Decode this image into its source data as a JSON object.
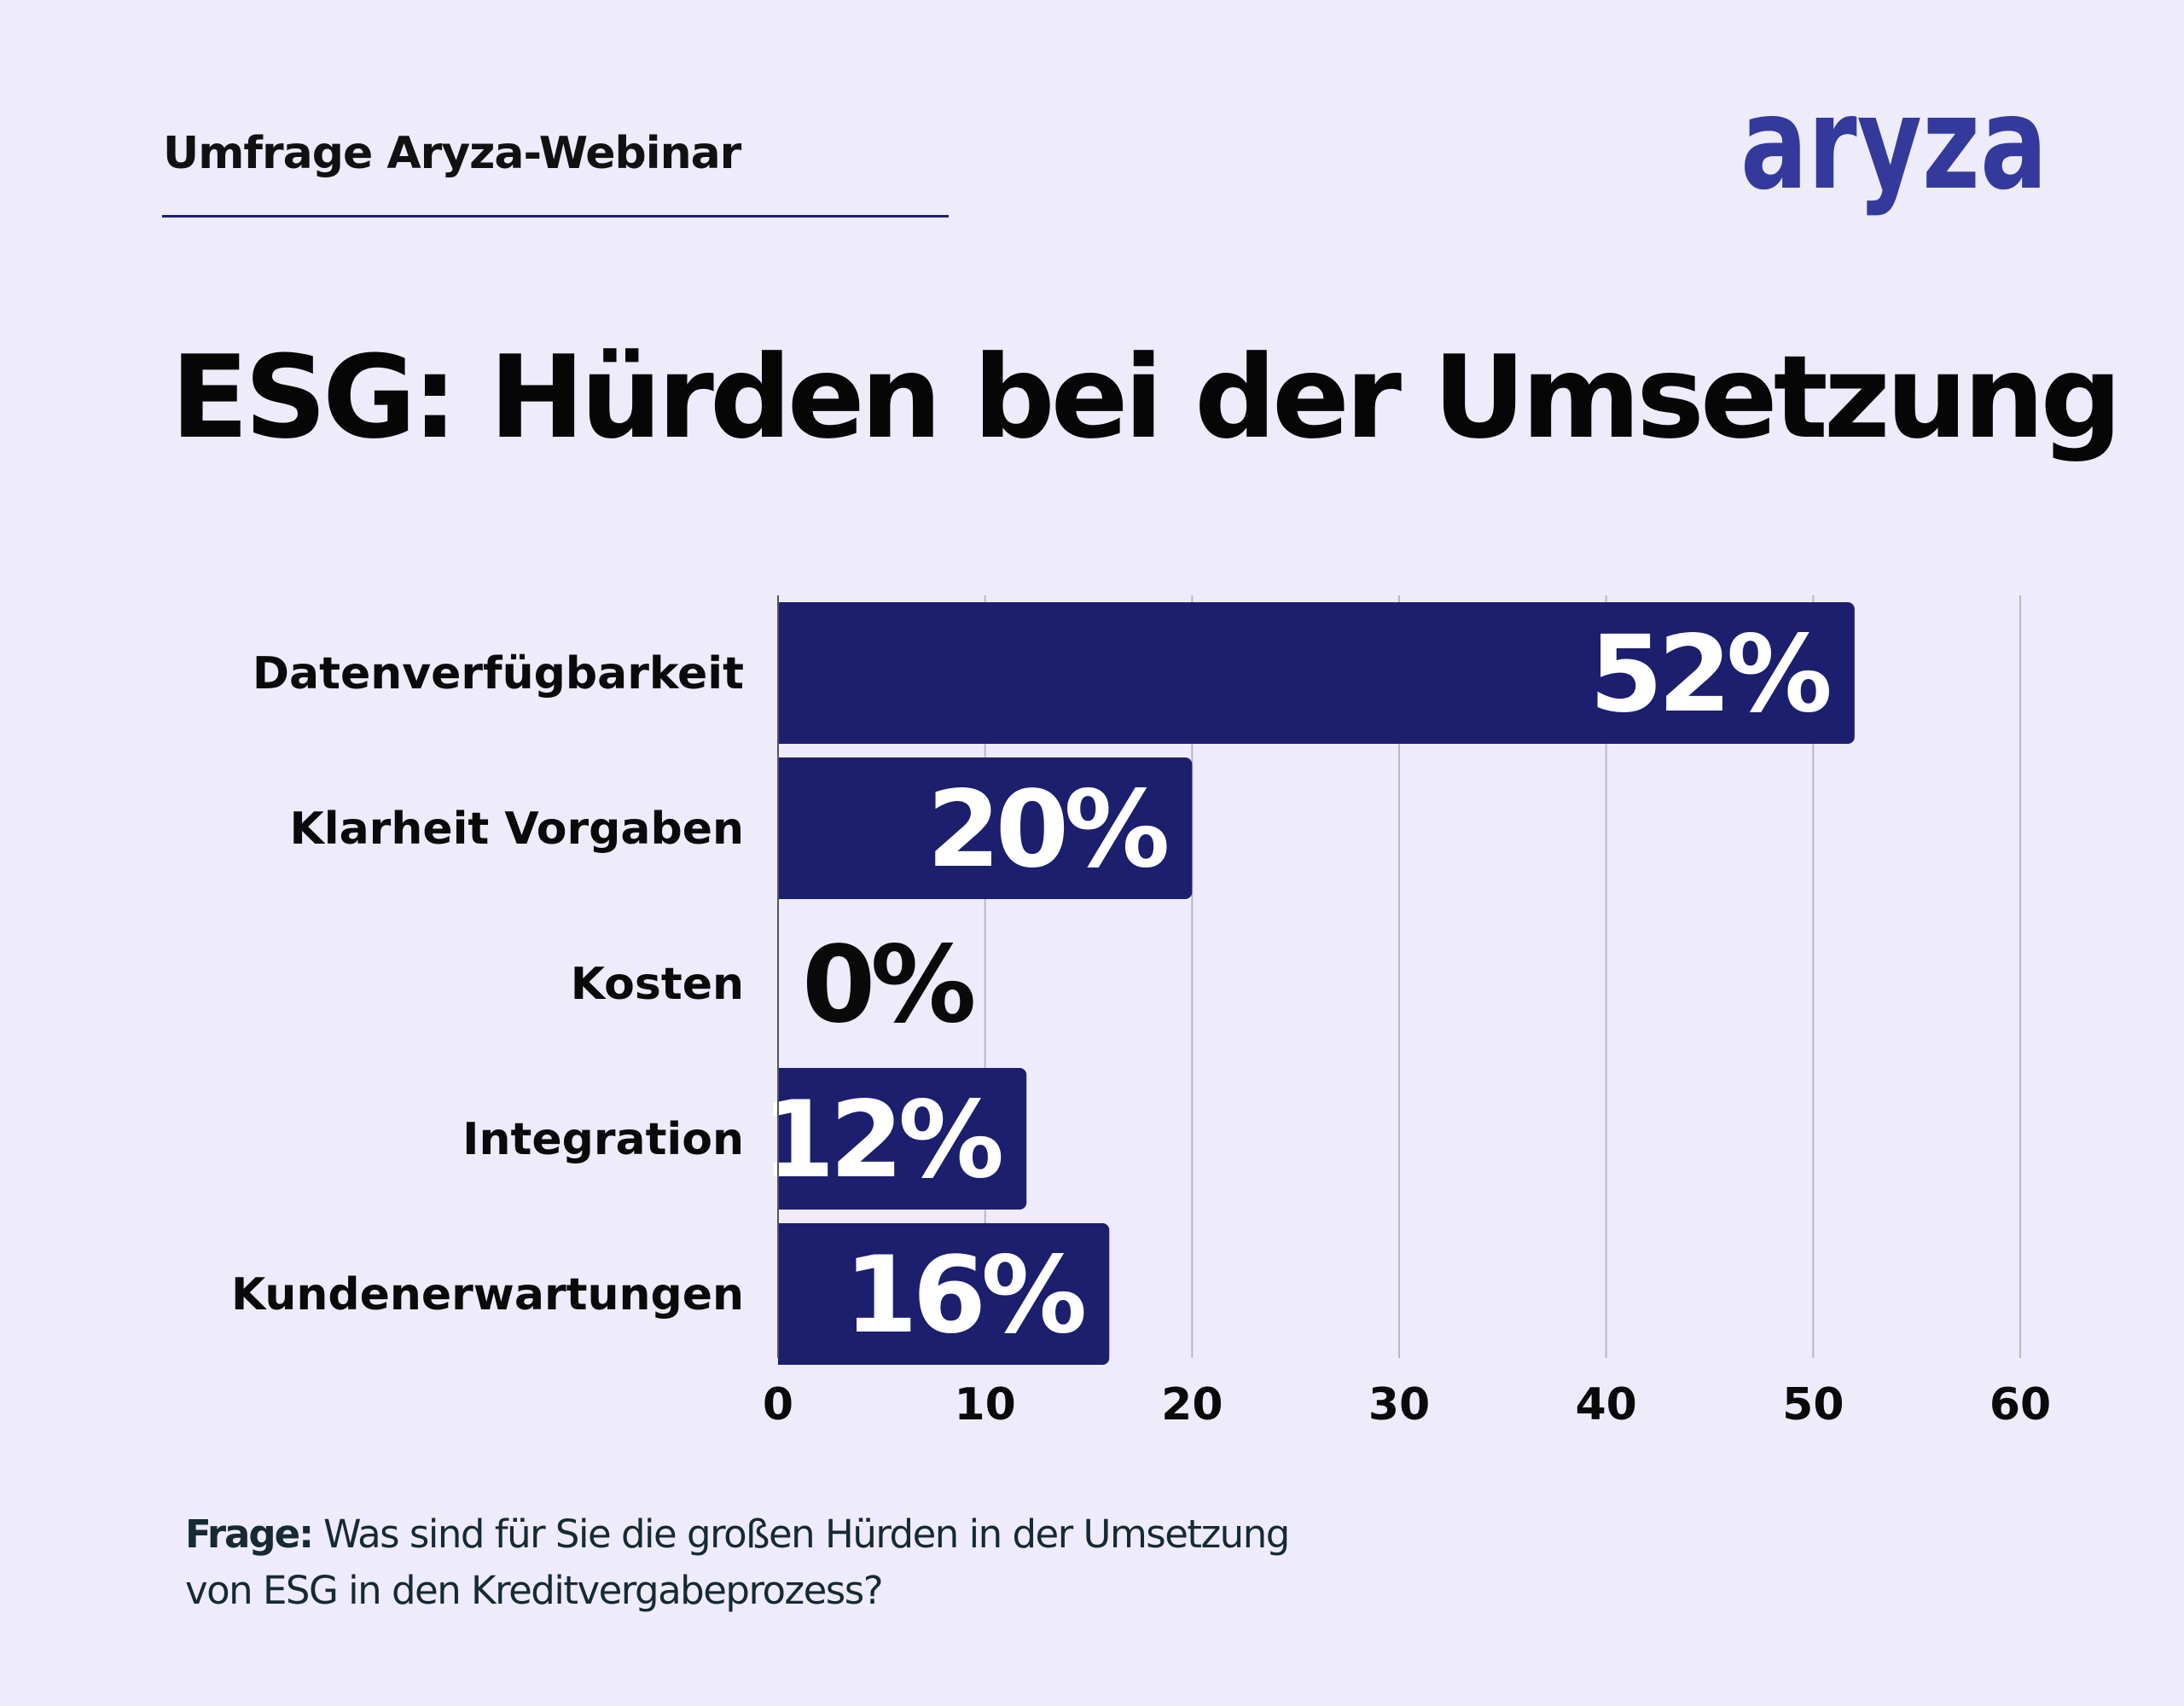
{
  "header": {
    "kicker": "Umfrage Aryza-Webinar",
    "logo_text": "aryza"
  },
  "title": "ESG: Hürden bei der Umsetzung",
  "colors": {
    "background": "#eeebfa",
    "bar": "#1c1f6e",
    "logo": "#333a9c",
    "grid": "#b9b6c9",
    "value_label_on_bar": "#ffffff",
    "value_label_outside": "#0a0a0a"
  },
  "chart_data": {
    "type": "bar",
    "orientation": "horizontal",
    "categories": [
      "Datenverfügbarkeit",
      "Klarheit Vorgaben",
      "Kosten",
      "Integration",
      "Kundenerwartungen"
    ],
    "values": [
      52,
      20,
      0,
      12,
      16
    ],
    "value_labels": [
      "52%",
      "20%",
      "0%",
      "12%",
      "16%"
    ],
    "xlim": [
      0,
      60
    ],
    "xticks": [
      0,
      10,
      20,
      30,
      40,
      50,
      60
    ],
    "xtick_labels": [
      "0",
      "10",
      "20",
      "30",
      "40",
      "50",
      "60"
    ],
    "grid": "vertical",
    "legend": "none"
  },
  "footer": {
    "question_label": "Frage:",
    "question_line1": "Was sind für Sie die großen Hürden in der Umsetzung",
    "question_line2": "von ESG in den Kreditvergabeprozess?"
  }
}
